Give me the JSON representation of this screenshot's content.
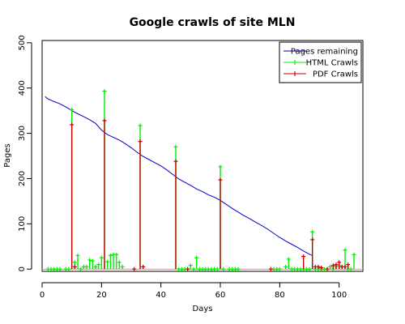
{
  "chart_data": {
    "type": "line",
    "title": "Google crawls of site MLN",
    "xlabel": "Days",
    "ylabel": "Pages",
    "xlim": [
      0,
      108
    ],
    "ylim": [
      -5,
      505
    ],
    "x_ticks": [
      0,
      20,
      40,
      60,
      80,
      100
    ],
    "y_ticks": [
      0,
      100,
      200,
      300,
      400,
      500
    ],
    "legend_position": "top-right",
    "reference_line_y": 0,
    "series": [
      {
        "name": "Pages remaining",
        "kind": "line",
        "color": "#0000cc",
        "points": [
          [
            1,
            381
          ],
          [
            2,
            376
          ],
          [
            4,
            370
          ],
          [
            6,
            365
          ],
          [
            8,
            358
          ],
          [
            10,
            350
          ],
          [
            12,
            343
          ],
          [
            14,
            337
          ],
          [
            16,
            330
          ],
          [
            18,
            322
          ],
          [
            20,
            307
          ],
          [
            22,
            297
          ],
          [
            24,
            291
          ],
          [
            26,
            285
          ],
          [
            28,
            277
          ],
          [
            30,
            268
          ],
          [
            32,
            258
          ],
          [
            34,
            249
          ],
          [
            36,
            242
          ],
          [
            38,
            235
          ],
          [
            40,
            228
          ],
          [
            42,
            219
          ],
          [
            44,
            209
          ],
          [
            46,
            199
          ],
          [
            48,
            192
          ],
          [
            50,
            185
          ],
          [
            52,
            177
          ],
          [
            54,
            171
          ],
          [
            56,
            164
          ],
          [
            58,
            159
          ],
          [
            60,
            152
          ],
          [
            62,
            143
          ],
          [
            64,
            134
          ],
          [
            66,
            126
          ],
          [
            68,
            118
          ],
          [
            70,
            111
          ],
          [
            72,
            103
          ],
          [
            74,
            96
          ],
          [
            76,
            88
          ],
          [
            78,
            79
          ],
          [
            80,
            70
          ],
          [
            82,
            62
          ],
          [
            84,
            55
          ],
          [
            86,
            48
          ],
          [
            88,
            40
          ],
          [
            90,
            33
          ],
          [
            91,
            30
          ]
        ]
      },
      {
        "name": "HTML Crawls",
        "kind": "spikes",
        "color": "#00ee00",
        "points": [
          [
            2,
            0
          ],
          [
            3,
            0
          ],
          [
            4,
            0
          ],
          [
            5,
            0
          ],
          [
            6,
            0
          ],
          [
            8,
            0
          ],
          [
            9,
            0
          ],
          [
            10,
            352
          ],
          [
            11,
            15
          ],
          [
            12,
            30
          ],
          [
            13,
            0
          ],
          [
            14,
            5
          ],
          [
            15,
            5
          ],
          [
            16,
            20
          ],
          [
            17,
            18
          ],
          [
            18,
            5
          ],
          [
            19,
            10
          ],
          [
            20,
            25
          ],
          [
            21,
            393
          ],
          [
            22,
            16
          ],
          [
            23,
            30
          ],
          [
            24,
            32
          ],
          [
            25,
            32
          ],
          [
            26,
            15
          ],
          [
            27,
            5
          ],
          [
            33,
            317
          ],
          [
            45,
            270
          ],
          [
            46,
            0
          ],
          [
            47,
            0
          ],
          [
            48,
            0
          ],
          [
            49,
            0
          ],
          [
            50,
            8
          ],
          [
            51,
            0
          ],
          [
            52,
            25
          ],
          [
            53,
            0
          ],
          [
            54,
            0
          ],
          [
            55,
            0
          ],
          [
            56,
            0
          ],
          [
            57,
            0
          ],
          [
            58,
            0
          ],
          [
            59,
            0
          ],
          [
            60,
            226
          ],
          [
            61,
            0
          ],
          [
            63,
            0
          ],
          [
            64,
            0
          ],
          [
            65,
            0
          ],
          [
            66,
            0
          ],
          [
            78,
            0
          ],
          [
            79,
            0
          ],
          [
            80,
            0
          ],
          [
            82,
            5
          ],
          [
            83,
            22
          ],
          [
            84,
            0
          ],
          [
            85,
            0
          ],
          [
            86,
            0
          ],
          [
            87,
            0
          ],
          [
            88,
            0
          ],
          [
            89,
            0
          ],
          [
            90,
            0
          ],
          [
            91,
            82
          ],
          [
            92,
            0
          ],
          [
            93,
            0
          ],
          [
            94,
            0
          ],
          [
            95,
            0
          ],
          [
            96,
            0
          ],
          [
            97,
            5
          ],
          [
            98,
            0
          ],
          [
            99,
            5
          ],
          [
            100,
            8
          ],
          [
            101,
            5
          ],
          [
            102,
            42
          ],
          [
            103,
            0
          ],
          [
            104,
            0
          ],
          [
            105,
            32
          ]
        ]
      },
      {
        "name": "PDF Crawls",
        "kind": "spikes",
        "color": "#cc0000",
        "points": [
          [
            10,
            319
          ],
          [
            11,
            5
          ],
          [
            21,
            328
          ],
          [
            31,
            0
          ],
          [
            33,
            282
          ],
          [
            34,
            5
          ],
          [
            45,
            238
          ],
          [
            49,
            0
          ],
          [
            60,
            197
          ],
          [
            77,
            0
          ],
          [
            88,
            28
          ],
          [
            91,
            65
          ],
          [
            92,
            5
          ],
          [
            93,
            5
          ],
          [
            94,
            3
          ],
          [
            96,
            0
          ],
          [
            98,
            8
          ],
          [
            99,
            10
          ],
          [
            100,
            15
          ],
          [
            101,
            5
          ],
          [
            102,
            5
          ],
          [
            103,
            10
          ]
        ]
      }
    ]
  }
}
